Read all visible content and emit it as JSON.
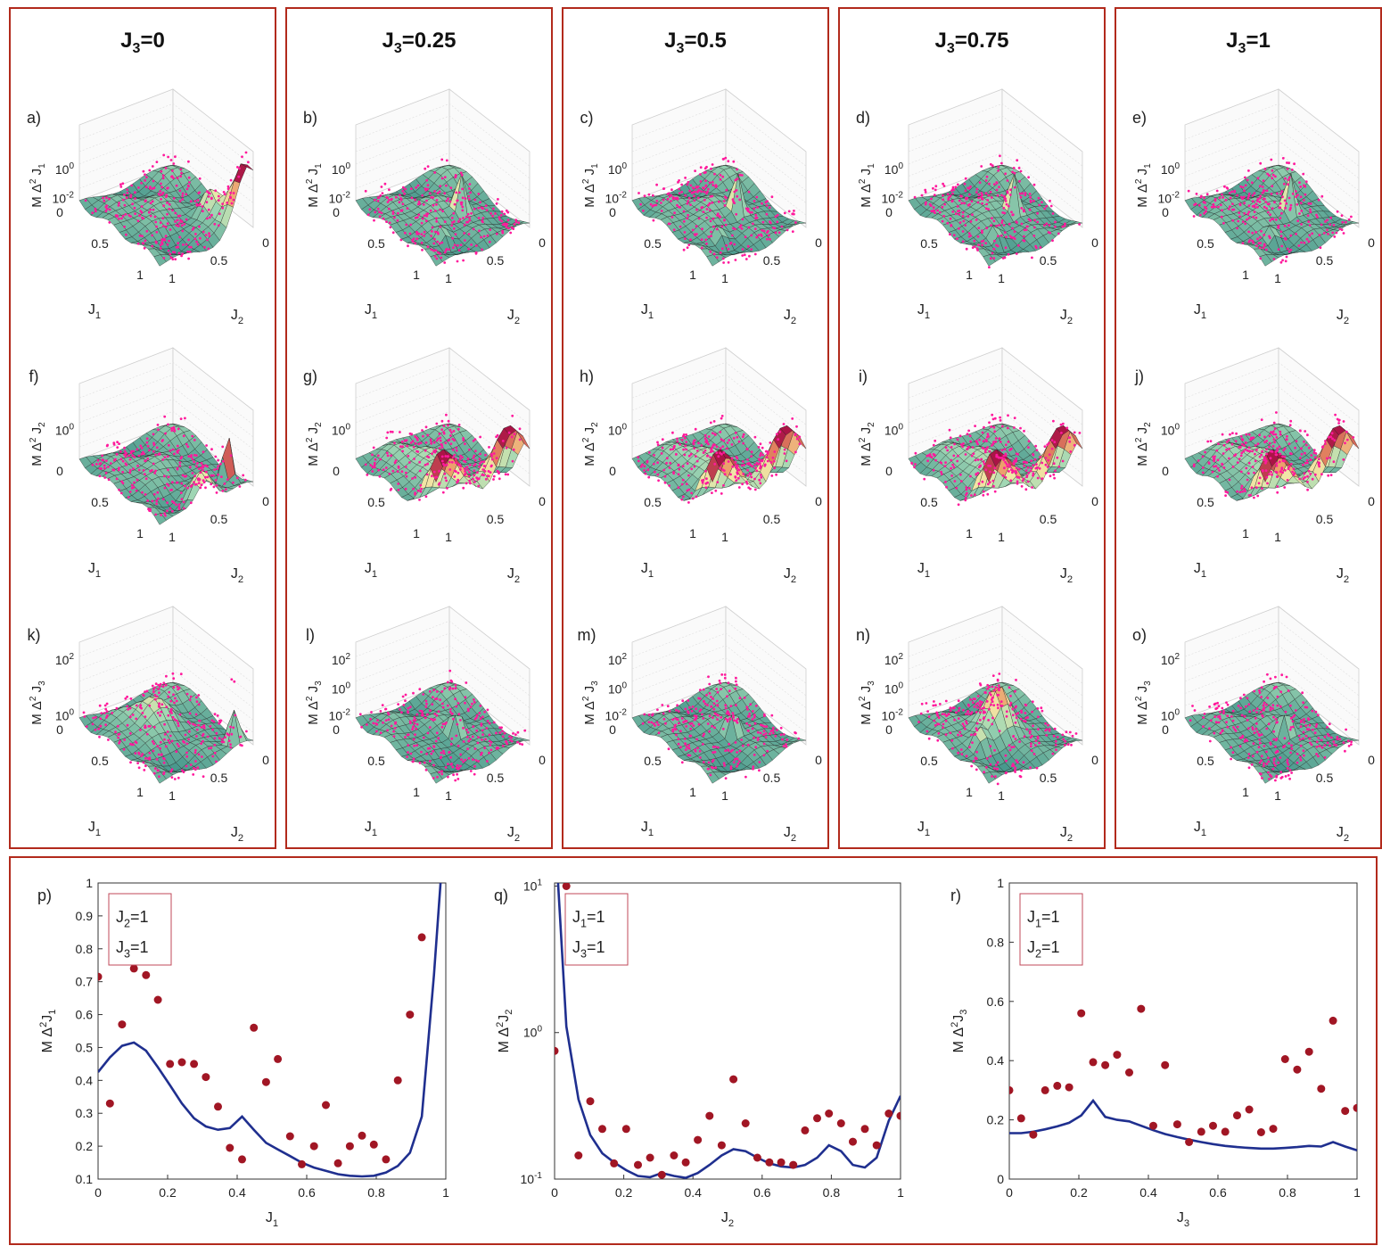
{
  "columns": [
    {
      "title_main": "J",
      "title_sub": "3",
      "title_rest": "=0",
      "panels": [
        {
          "label": "a)",
          "zlabel": "J1",
          "zticks": [
            "10",
            "10"
          ],
          "zexp": [
            "0",
            "-2"
          ],
          "style": "peakcorner"
        },
        {
          "label": "f)",
          "zlabel": "J2",
          "zticks": [
            "10"
          ],
          "zexp": [
            "0"
          ],
          "style": "spike"
        },
        {
          "label": "k)",
          "zlabel": "J3",
          "zticks": [
            "10",
            "10"
          ],
          "zexp": [
            "2",
            "0"
          ],
          "style": "spike2"
        }
      ]
    },
    {
      "title_main": "J",
      "title_sub": "3",
      "title_rest": "=0.25",
      "panels": [
        {
          "label": "b)",
          "zlabel": "J1",
          "zticks": [
            "10",
            "10"
          ],
          "zexp": [
            "0",
            "-2"
          ],
          "style": "mid"
        },
        {
          "label": "g)",
          "zlabel": "J2",
          "zticks": [
            "10"
          ],
          "zexp": [
            "0"
          ],
          "style": "ridge"
        },
        {
          "label": "l)",
          "zlabel": "J3",
          "zticks": [
            "10",
            "10",
            "10"
          ],
          "zexp": [
            "2",
            "0",
            "-2"
          ],
          "style": "flat"
        }
      ]
    },
    {
      "title_main": "J",
      "title_sub": "3",
      "title_rest": "=0.5",
      "panels": [
        {
          "label": "c)",
          "zlabel": "J1",
          "zticks": [
            "10",
            "10"
          ],
          "zexp": [
            "0",
            "-2"
          ],
          "style": "mid"
        },
        {
          "label": "h)",
          "zlabel": "J2",
          "zticks": [
            "10"
          ],
          "zexp": [
            "0"
          ],
          "style": "ridge"
        },
        {
          "label": "m)",
          "zlabel": "J3",
          "zticks": [
            "10",
            "10",
            "10"
          ],
          "zexp": [
            "2",
            "0",
            "-2"
          ],
          "style": "flat"
        }
      ]
    },
    {
      "title_main": "J",
      "title_sub": "3",
      "title_rest": "=0.75",
      "panels": [
        {
          "label": "d)",
          "zlabel": "J1",
          "zticks": [
            "10",
            "10"
          ],
          "zexp": [
            "0",
            "-2"
          ],
          "style": "mid"
        },
        {
          "label": "i)",
          "zlabel": "J2",
          "zticks": [
            "10"
          ],
          "zexp": [
            "0"
          ],
          "style": "ridge"
        },
        {
          "label": "n)",
          "zlabel": "J3",
          "zticks": [
            "10",
            "10",
            "10"
          ],
          "zexp": [
            "2",
            "0",
            "-2"
          ],
          "style": "mound"
        }
      ]
    },
    {
      "title_main": "J",
      "title_sub": "3",
      "title_rest": "=1",
      "panels": [
        {
          "label": "e)",
          "zlabel": "J1",
          "zticks": [
            "10",
            "10"
          ],
          "zexp": [
            "0",
            "-2"
          ],
          "style": "mid"
        },
        {
          "label": "j)",
          "zlabel": "J2",
          "zticks": [
            "10"
          ],
          "zexp": [
            "0"
          ],
          "style": "ridge"
        },
        {
          "label": "o)",
          "zlabel": "J3",
          "zticks": [
            "10",
            "10"
          ],
          "zexp": [
            "2",
            "0"
          ],
          "style": "flat"
        }
      ]
    }
  ],
  "axis3d": {
    "j1_ticks": [
      "0",
      "0.5",
      "1"
    ],
    "j2_ticks": [
      "0",
      "0.5",
      "1"
    ],
    "xlabel": "J",
    "xsub": "1",
    "ylabel": "J",
    "ysub": "2",
    "zprefix": "M Δ",
    "zsq": "2"
  },
  "colors": {
    "frame": "#b22a1c",
    "line": "#1f2f8f",
    "dot": "#a11624",
    "magenta": "#ff1a9c"
  },
  "chart_data": [
    {
      "type": "line",
      "label": "p)",
      "scale": "linear",
      "xlim": [
        0,
        1
      ],
      "ylim": [
        0.1,
        1
      ],
      "xlabel_main": "J",
      "xlabel_sub": "1",
      "ylabel_sub": "1",
      "xticks": [
        "0",
        "0.2",
        "0.4",
        "0.6",
        "0.8",
        "1"
      ],
      "yticks": [
        "0.1",
        "0.2",
        "0.3",
        "0.4",
        "0.5",
        "0.6",
        "0.7",
        "0.8",
        "0.9",
        "1"
      ],
      "legend": [
        {
          "main": "J",
          "sub": "2",
          "rest": "=1"
        },
        {
          "main": "J",
          "sub": "3",
          "rest": "=1"
        }
      ],
      "line_x": [
        0,
        0.034,
        0.069,
        0.103,
        0.138,
        0.172,
        0.207,
        0.241,
        0.276,
        0.31,
        0.345,
        0.379,
        0.414,
        0.448,
        0.483,
        0.517,
        0.552,
        0.586,
        0.621,
        0.655,
        0.69,
        0.724,
        0.759,
        0.793,
        0.828,
        0.862,
        0.897,
        0.931,
        0.966,
        0.985
      ],
      "line_y": [
        0.425,
        0.47,
        0.505,
        0.515,
        0.49,
        0.44,
        0.385,
        0.33,
        0.285,
        0.26,
        0.25,
        0.255,
        0.29,
        0.25,
        0.21,
        0.19,
        0.17,
        0.15,
        0.135,
        0.125,
        0.115,
        0.11,
        0.108,
        0.11,
        0.12,
        0.14,
        0.18,
        0.29,
        0.72,
        1.0
      ],
      "points_x": [
        0,
        0.034,
        0.069,
        0.103,
        0.138,
        0.172,
        0.207,
        0.241,
        0.276,
        0.31,
        0.345,
        0.379,
        0.414,
        0.448,
        0.483,
        0.517,
        0.552,
        0.586,
        0.621,
        0.655,
        0.69,
        0.724,
        0.759,
        0.793,
        0.828,
        0.862,
        0.897,
        0.931
      ],
      "points_y": [
        0.715,
        0.33,
        0.57,
        0.74,
        0.72,
        0.645,
        0.45,
        0.455,
        0.45,
        0.41,
        0.32,
        0.195,
        0.16,
        0.56,
        0.395,
        0.465,
        0.23,
        0.145,
        0.2,
        0.325,
        0.148,
        0.2,
        0.232,
        0.205,
        0.16,
        0.4,
        0.6,
        0.835
      ]
    },
    {
      "type": "line",
      "label": "q)",
      "scale": "log",
      "xlim": [
        0,
        1
      ],
      "ylim": [
        0.1,
        10.5
      ],
      "xlabel_main": "J",
      "xlabel_sub": "2",
      "ylabel_sub": "2",
      "xticks": [
        "0",
        "0.2",
        "0.4",
        "0.6",
        "0.8",
        "1"
      ],
      "yticks_main": [
        "10",
        "10",
        "10"
      ],
      "yticks_exp": [
        "1",
        "0",
        "-1"
      ],
      "yticks_val": [
        10,
        1,
        0.1
      ],
      "legend": [
        {
          "main": "J",
          "sub": "1",
          "rest": "=1"
        },
        {
          "main": "J",
          "sub": "3",
          "rest": "=1"
        }
      ],
      "line_x": [
        0.01,
        0.034,
        0.069,
        0.103,
        0.138,
        0.172,
        0.207,
        0.241,
        0.276,
        0.31,
        0.345,
        0.379,
        0.414,
        0.448,
        0.483,
        0.517,
        0.552,
        0.586,
        0.621,
        0.655,
        0.69,
        0.724,
        0.759,
        0.793,
        0.828,
        0.862,
        0.897,
        0.931,
        0.966,
        1
      ],
      "line_y": [
        10.5,
        1.1,
        0.35,
        0.2,
        0.15,
        0.13,
        0.115,
        0.105,
        0.103,
        0.11,
        0.105,
        0.102,
        0.11,
        0.125,
        0.145,
        0.16,
        0.155,
        0.14,
        0.128,
        0.122,
        0.12,
        0.125,
        0.14,
        0.17,
        0.155,
        0.125,
        0.12,
        0.14,
        0.25,
        0.37
      ],
      "points_x": [
        0,
        0.034,
        0.069,
        0.103,
        0.138,
        0.172,
        0.207,
        0.241,
        0.276,
        0.31,
        0.345,
        0.379,
        0.414,
        0.448,
        0.483,
        0.517,
        0.552,
        0.586,
        0.621,
        0.655,
        0.69,
        0.724,
        0.759,
        0.793,
        0.828,
        0.862,
        0.897,
        0.931,
        0.966,
        1
      ],
      "points_y": [
        0.75,
        10,
        0.145,
        0.34,
        0.22,
        0.128,
        0.22,
        0.125,
        0.14,
        0.107,
        0.145,
        0.13,
        0.185,
        0.27,
        0.17,
        0.48,
        0.24,
        0.14,
        0.13,
        0.13,
        0.125,
        0.215,
        0.26,
        0.28,
        0.24,
        0.18,
        0.22,
        0.17,
        0.28,
        0.27
      ]
    },
    {
      "type": "line",
      "label": "r)",
      "scale": "linear",
      "xlim": [
        0,
        1
      ],
      "ylim": [
        0,
        1
      ],
      "xlabel_main": "J",
      "xlabel_sub": "3",
      "ylabel_sub": "3",
      "xticks": [
        "0",
        "0.2",
        "0.4",
        "0.6",
        "0.8",
        "1"
      ],
      "yticks": [
        "0",
        "0.2",
        "0.4",
        "0.6",
        "0.8",
        "1"
      ],
      "legend": [
        {
          "main": "J",
          "sub": "1",
          "rest": "=1"
        },
        {
          "main": "J",
          "sub": "2",
          "rest": "=1"
        }
      ],
      "line_x": [
        0,
        0.034,
        0.069,
        0.103,
        0.138,
        0.172,
        0.207,
        0.241,
        0.276,
        0.31,
        0.345,
        0.379,
        0.414,
        0.448,
        0.483,
        0.517,
        0.552,
        0.586,
        0.621,
        0.655,
        0.69,
        0.724,
        0.759,
        0.793,
        0.828,
        0.862,
        0.897,
        0.931,
        0.966,
        1
      ],
      "line_y": [
        0.155,
        0.155,
        0.16,
        0.168,
        0.178,
        0.19,
        0.215,
        0.265,
        0.21,
        0.2,
        0.195,
        0.18,
        0.165,
        0.152,
        0.142,
        0.133,
        0.125,
        0.118,
        0.112,
        0.108,
        0.105,
        0.103,
        0.103,
        0.105,
        0.108,
        0.112,
        0.11,
        0.125,
        0.11,
        0.097
      ],
      "points_x": [
        0,
        0.034,
        0.069,
        0.103,
        0.138,
        0.172,
        0.207,
        0.241,
        0.276,
        0.31,
        0.345,
        0.379,
        0.414,
        0.448,
        0.483,
        0.517,
        0.552,
        0.586,
        0.621,
        0.655,
        0.69,
        0.724,
        0.759,
        0.793,
        0.828,
        0.862,
        0.897,
        0.931,
        0.966,
        1
      ],
      "points_y": [
        0.3,
        0.205,
        0.15,
        0.3,
        0.315,
        0.31,
        0.56,
        0.395,
        0.385,
        0.42,
        0.36,
        0.575,
        0.18,
        0.385,
        0.185,
        0.125,
        0.16,
        0.18,
        0.16,
        0.215,
        0.235,
        0.158,
        0.17,
        0.405,
        0.37,
        0.43,
        0.305,
        0.535,
        0.23,
        0.24
      ]
    }
  ]
}
